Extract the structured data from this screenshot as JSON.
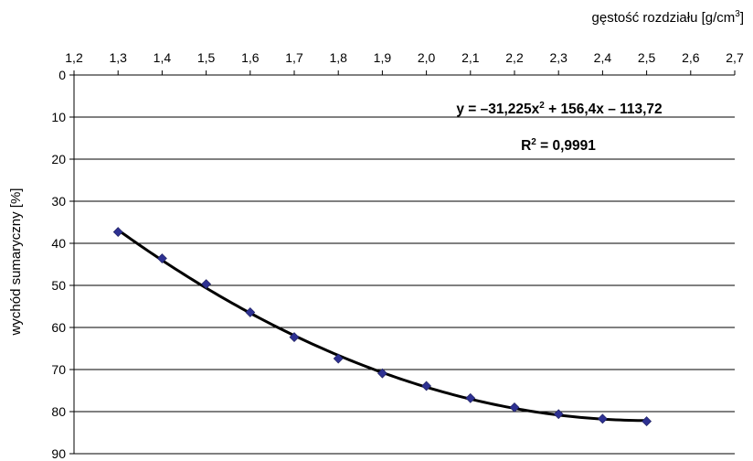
{
  "chart_data": {
    "type": "scatter",
    "x_label_prefix": "gęstość rozdziału [g/cm",
    "x_label_sup": "3",
    "x_label_suffix": "]",
    "ylabel": "wychód sumaryczny [%]",
    "xlim": [
      1.2,
      2.7
    ],
    "ylim": [
      0,
      90
    ],
    "y_inverted": true,
    "x_axis_position": "top",
    "x_ticks": [
      "1,2",
      "1,3",
      "1,4",
      "1,5",
      "1,6",
      "1,7",
      "1,8",
      "1,9",
      "2,0",
      "2,1",
      "2,2",
      "2,3",
      "2,4",
      "2,5",
      "2,6",
      "2,7"
    ],
    "y_ticks": [
      "0",
      "10",
      "20",
      "30",
      "40",
      "50",
      "60",
      "70",
      "80",
      "90"
    ],
    "grid": "horizontal",
    "series": [
      {
        "marker": "diamond",
        "color": "#2E3192",
        "x": [
          1.3,
          1.4,
          1.5,
          1.6,
          1.7,
          1.8,
          1.9,
          2.0,
          2.1,
          2.2,
          2.3,
          2.4,
          2.5
        ],
        "y": [
          37.3,
          43.6,
          49.7,
          56.4,
          62.3,
          67.4,
          70.9,
          73.9,
          76.8,
          79.0,
          80.6,
          81.7,
          82.3
        ]
      }
    ],
    "trendline": {
      "type": "polynomial",
      "a": -31.225,
      "b": 156.4,
      "c": -113.72,
      "color": "#000000"
    },
    "equation": {
      "prefix": "y = –31,225x",
      "sup": "2",
      "suffix": " + 156,4x – 113,72"
    },
    "r2": {
      "prefix": "R",
      "sup": "2",
      "suffix": " = 0,9991"
    }
  }
}
